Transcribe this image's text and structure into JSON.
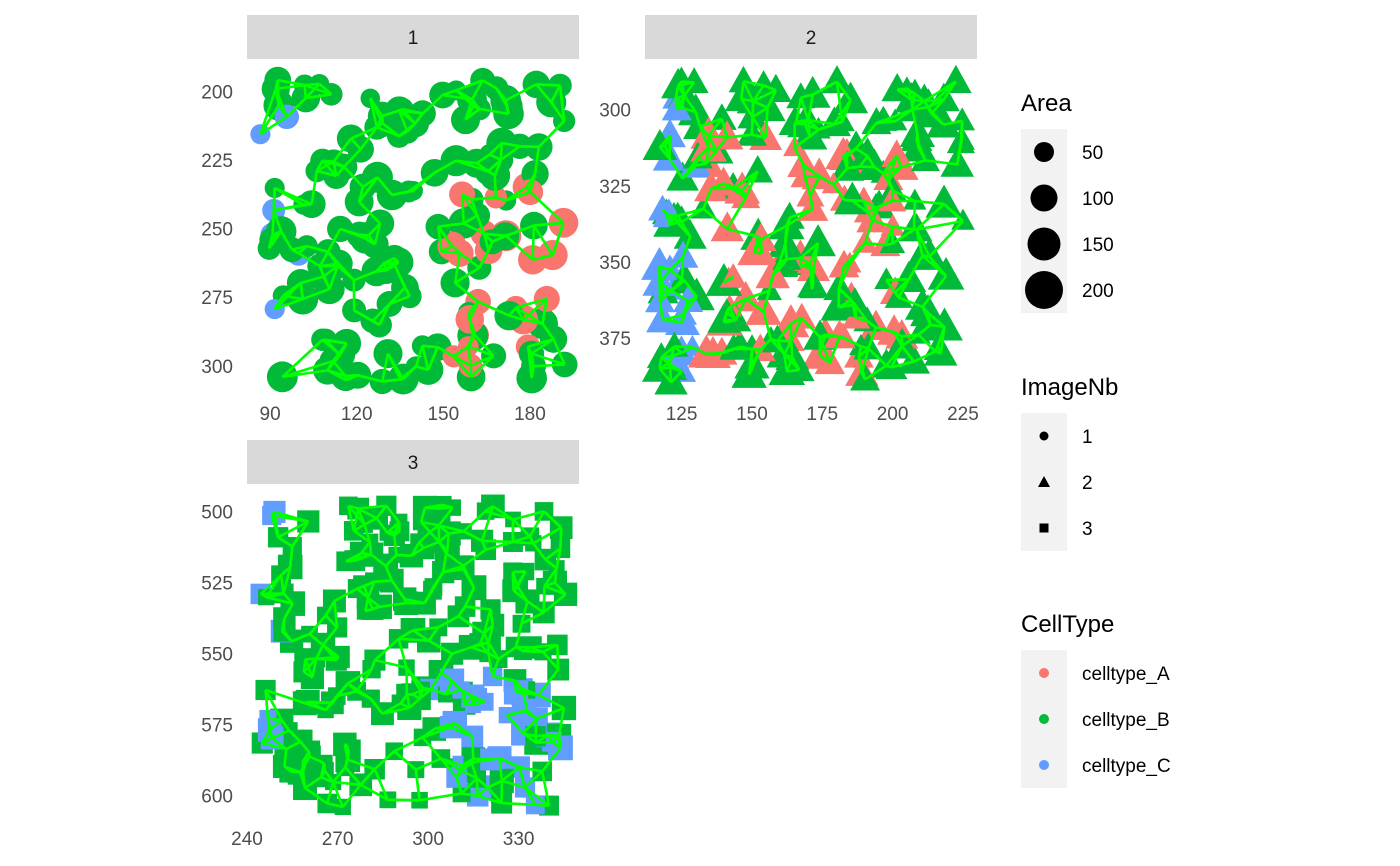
{
  "chart_data": {
    "type": "scatter",
    "facet_by": "ImageNb",
    "colors": {
      "celltype_A": "#F8766D",
      "celltype_B": "#00BA38",
      "celltype_C": "#619CFF",
      "link": "#00FF00",
      "strip_bg": "#D9D9D9",
      "legend_key_bg": "#F2F2F2"
    },
    "panels": [
      {
        "id": "1",
        "strip_label": "1",
        "shape": "circle",
        "xlim": [
          82,
          197
        ],
        "ylim": [
          190,
          311
        ],
        "x_ticks": [
          90,
          120,
          150,
          180
        ],
        "y_ticks": [
          200,
          225,
          250,
          275,
          300
        ],
        "seed": 11,
        "n_points": 160,
        "type_zones": [
          {
            "type": "celltype_A",
            "x": [
              150,
              197
            ],
            "y": [
              232,
              300
            ]
          },
          {
            "type": "celltype_C",
            "x": [
              82,
              100
            ],
            "y": [
              190,
              311
            ]
          }
        ]
      },
      {
        "id": "2",
        "strip_label": "2",
        "shape": "triangle",
        "xlim": [
          112,
          230
        ],
        "ylim": [
          285,
          394
        ],
        "x_ticks": [
          125,
          150,
          175,
          200,
          225
        ],
        "y_ticks": [
          300,
          325,
          350,
          375
        ],
        "seed": 23,
        "n_points": 230,
        "type_zones": [
          {
            "type": "celltype_A",
            "x": [
              133,
              205
            ],
            "y": [
              305,
              392
            ]
          },
          {
            "type": "celltype_C",
            "x": [
              112,
              130
            ],
            "y": [
              285,
              394
            ]
          }
        ]
      },
      {
        "id": "3",
        "strip_label": "3",
        "shape": "square",
        "xlim": [
          240,
          350
        ],
        "ylim": [
          492,
          609
        ],
        "x_ticks": [
          240,
          270,
          300,
          330
        ],
        "y_ticks": [
          500,
          525,
          550,
          575,
          600
        ],
        "seed": 37,
        "n_points": 230,
        "type_zones": [
          {
            "type": "celltype_C",
            "x": [
              240,
              252
            ],
            "y": [
              492,
              609
            ]
          },
          {
            "type": "celltype_C",
            "x": [
              300,
              350
            ],
            "y": [
              555,
              609
            ]
          }
        ]
      }
    ],
    "legends": [
      {
        "title": "Area",
        "kind": "size",
        "entries": [
          {
            "label": "50",
            "value": 50
          },
          {
            "label": "100",
            "value": 100
          },
          {
            "label": "150",
            "value": 150
          },
          {
            "label": "200",
            "value": 200
          }
        ]
      },
      {
        "title": "ImageNb",
        "kind": "shape",
        "entries": [
          {
            "label": "1",
            "shape": "circle"
          },
          {
            "label": "2",
            "shape": "triangle"
          },
          {
            "label": "3",
            "shape": "square"
          }
        ]
      },
      {
        "title": "CellType",
        "kind": "color",
        "entries": [
          {
            "label": "celltype_A",
            "color": "#F8766D"
          },
          {
            "label": "celltype_B",
            "color": "#00BA38"
          },
          {
            "label": "celltype_C",
            "color": "#619CFF"
          }
        ]
      }
    ]
  }
}
